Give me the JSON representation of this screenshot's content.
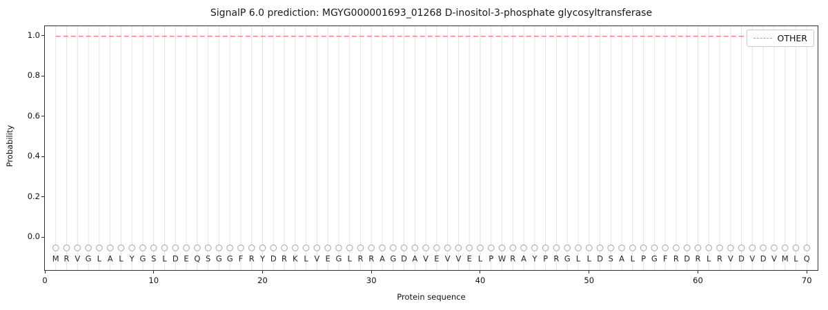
{
  "chart_data": {
    "type": "line",
    "title": "SignalP 6.0 prediction: MGYG000001693_01268 D-inositol-3-phosphate glycosyltransferase",
    "xlabel": "Protein sequence",
    "ylabel": "Probability",
    "xlim": [
      0,
      71
    ],
    "ylim": [
      -0.16,
      1.05
    ],
    "xticks": [
      0,
      10,
      20,
      30,
      40,
      50,
      60,
      70
    ],
    "yticks": [
      "0.0",
      "0.2",
      "0.4",
      "0.6",
      "0.8",
      "1.0"
    ],
    "grid": "vertical gridline at every residue position 1-70",
    "grid_color": "#e3e3e3",
    "axis_color": "#2e2e2e",
    "sequence": "MRVGLALYGSLDEQSGGFRYDRKLVEGLRRAGDAVEVVELPWRAYPRGLLDSALPGFRDRLRVDVDVMLQ",
    "series": [
      {
        "name": "OTHER",
        "x_range": [
          1,
          70
        ],
        "value": 1.0,
        "color": "#f08080",
        "linestyle": "dashed"
      }
    ],
    "markers": {
      "shape": "open-circle",
      "color": "#ababab",
      "y": -0.05
    },
    "letters_y": -0.118,
    "legend": {
      "position": "upper right",
      "entries": [
        {
          "label": "OTHER",
          "color": "#f08080",
          "linestyle": "dashed"
        }
      ]
    }
  }
}
